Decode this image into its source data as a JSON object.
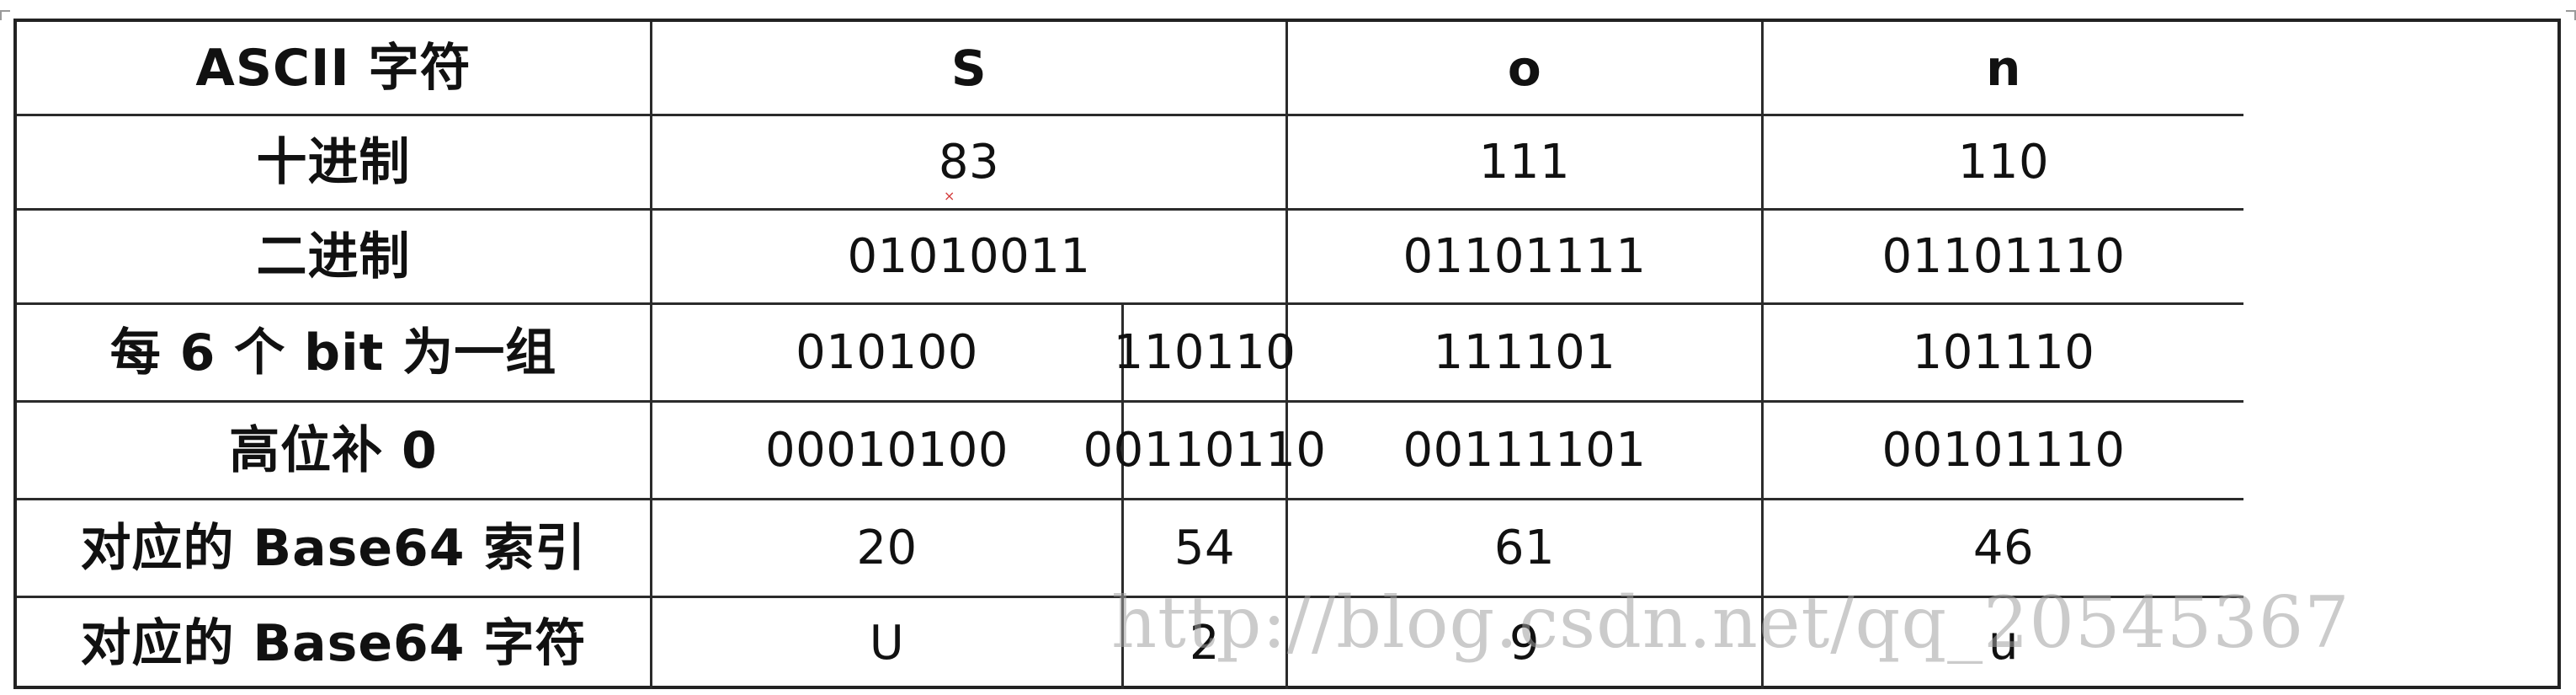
{
  "table": {
    "header": {
      "ascii_label": "ASCII 字符",
      "chars": [
        "S",
        "o",
        "n"
      ]
    },
    "rows": [
      {
        "label": "十进制",
        "values": [
          "83",
          "111",
          "110"
        ]
      },
      {
        "label": "二进制",
        "values": [
          "01010011",
          "01101111",
          "01101110"
        ]
      },
      {
        "label": "每 6 个 bit 为一组",
        "values": [
          "010100",
          "110110",
          "111101",
          "101110"
        ]
      },
      {
        "label": "高位补 0",
        "values": [
          "00010100",
          "00110110",
          "00111101",
          "00101110"
        ]
      },
      {
        "label": "对应的 Base64 索引",
        "values": [
          "20",
          "54",
          "61",
          "46"
        ]
      },
      {
        "label": "对应的 Base64 字符",
        "values": [
          "U",
          "2",
          "9",
          "u"
        ]
      }
    ]
  },
  "watermark": {
    "text": "http://blog.csdn.net/qq_20545367"
  }
}
